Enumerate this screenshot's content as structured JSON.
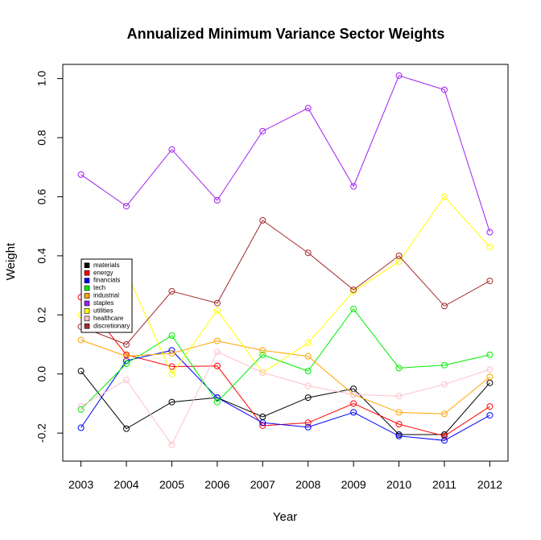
{
  "chart_data": {
    "type": "line",
    "title": "Annualized Minimum Variance Sector Weights",
    "xlabel": "Year",
    "ylabel": "Weight",
    "x": [
      2003,
      2004,
      2005,
      2006,
      2007,
      2008,
      2009,
      2010,
      2011,
      2012
    ],
    "x_tick_labels": [
      "2003",
      "2004",
      "2005",
      "2006",
      "2007",
      "2008",
      "2009",
      "2010",
      "2011",
      "2012"
    ],
    "y_ticks": [
      -0.2,
      0.0,
      0.2,
      0.4,
      0.6,
      0.8,
      1.0
    ],
    "y_tick_labels": [
      "-0.2",
      "0.0",
      "0.2",
      "0.4",
      "0.6",
      "0.8",
      "1.0"
    ],
    "xlim": [
      2002.6,
      2012.4
    ],
    "ylim": [
      -0.295,
      1.048
    ],
    "grid": false,
    "legend_position": "left",
    "series": [
      {
        "name": "materials",
        "color": "#000000",
        "values": [
          0.01,
          -0.185,
          -0.095,
          -0.08,
          -0.145,
          -0.08,
          -0.05,
          -0.205,
          -0.205,
          -0.03
        ]
      },
      {
        "name": "energy",
        "color": "#ff0000",
        "values": [
          0.26,
          0.065,
          0.025,
          0.027,
          -0.175,
          -0.165,
          -0.1,
          -0.17,
          -0.21,
          -0.11
        ]
      },
      {
        "name": "financials",
        "color": "#0000ff",
        "values": [
          -0.182,
          0.045,
          0.08,
          -0.08,
          -0.165,
          -0.18,
          -0.13,
          -0.21,
          -0.225,
          -0.14
        ]
      },
      {
        "name": "tech",
        "color": "#00ee00",
        "values": [
          -0.12,
          0.035,
          0.13,
          -0.095,
          0.065,
          0.01,
          0.22,
          0.02,
          0.03,
          0.065
        ]
      },
      {
        "name": "industrial",
        "color": "#ffa500",
        "values": [
          0.115,
          0.06,
          0.07,
          0.112,
          0.08,
          0.06,
          -0.07,
          -0.13,
          -0.135,
          -0.01
        ]
      },
      {
        "name": "staples",
        "color": "#a020f0",
        "values": [
          0.675,
          0.568,
          0.76,
          0.588,
          0.822,
          0.9,
          0.635,
          1.01,
          0.962,
          0.48
        ]
      },
      {
        "name": "utilities",
        "color": "#ffff00",
        "values": [
          0.2,
          0.345,
          0.0,
          0.215,
          0.005,
          0.105,
          0.28,
          0.38,
          0.6,
          0.43
        ]
      },
      {
        "name": "healthcare",
        "color": "#ffc0cb",
        "values": [
          -0.11,
          -0.02,
          -0.24,
          0.075,
          0.005,
          -0.04,
          -0.07,
          -0.075,
          -0.035,
          0.015
        ]
      },
      {
        "name": "discretionary",
        "color": "#a52a2a",
        "values": [
          0.16,
          0.1,
          0.28,
          0.24,
          0.52,
          0.41,
          0.285,
          0.4,
          0.23,
          0.315
        ]
      }
    ]
  }
}
